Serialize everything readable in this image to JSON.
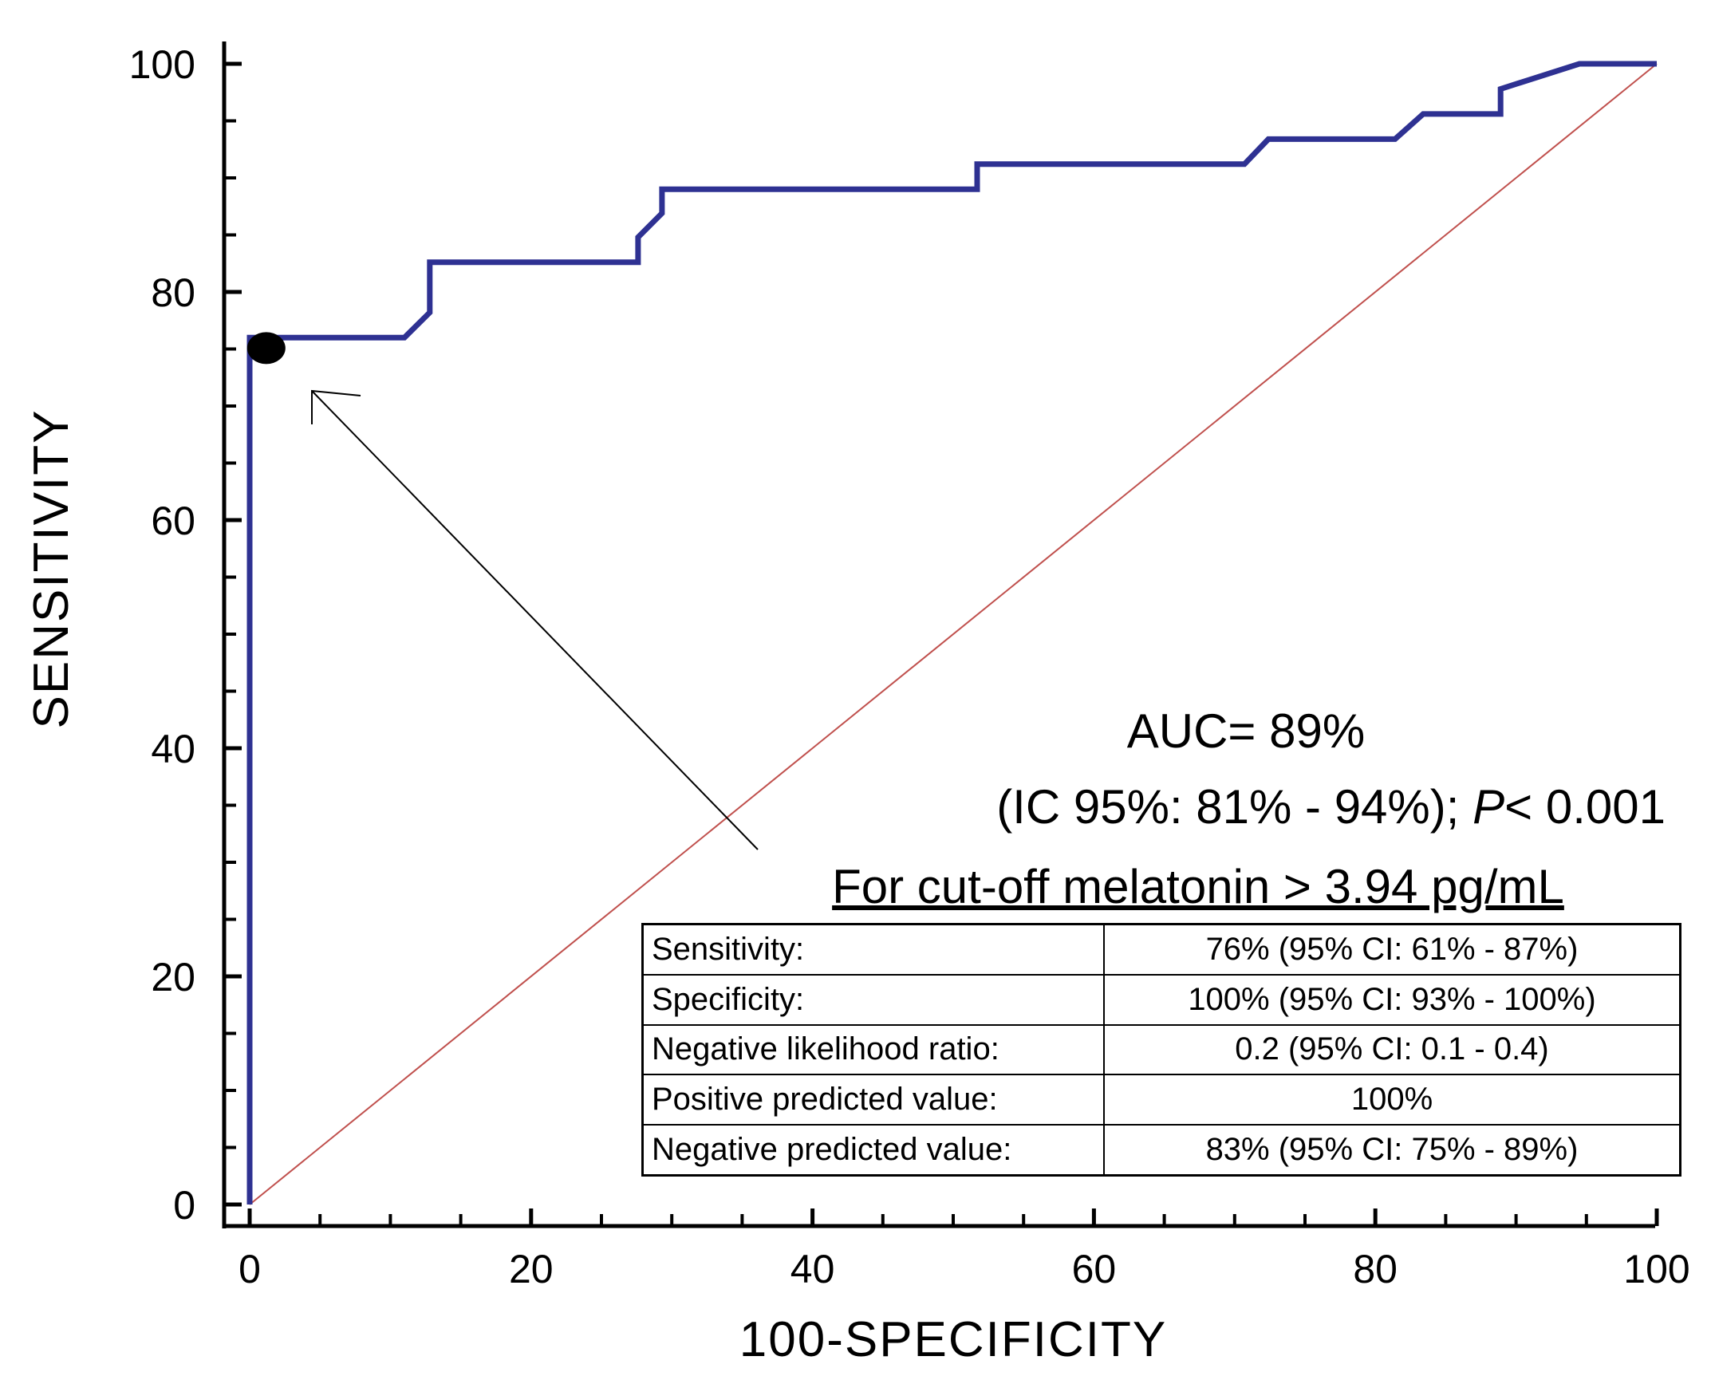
{
  "chart_data": {
    "type": "line",
    "title": "",
    "xlabel": "100-SPECIFICITY",
    "ylabel": "SENSITIVITY",
    "xlim": [
      0,
      100
    ],
    "ylim": [
      0,
      100
    ],
    "x_ticks": [
      "0",
      "20",
      "40",
      "60",
      "80",
      "100"
    ],
    "y_ticks": [
      "0",
      "20",
      "40",
      "60",
      "80",
      "100"
    ],
    "series": [
      {
        "name": "ROC curve",
        "color": "#2e3192",
        "x": [
          0,
          0,
          11,
          12.8,
          12.8,
          27.6,
          27.6,
          29.3,
          29.3,
          51.7,
          51.7,
          70.7,
          72.4,
          81.4,
          83.4,
          88.9,
          88.9,
          94.5,
          100
        ],
        "y": [
          0,
          76,
          76,
          78.2,
          82.6,
          82.6,
          84.8,
          86.9,
          89,
          89,
          91.2,
          91.2,
          93.4,
          93.4,
          95.6,
          95.6,
          97.8,
          100,
          100
        ]
      },
      {
        "name": "Reference line",
        "color": "#c0504d",
        "x": [
          0,
          100
        ],
        "y": [
          0,
          100
        ]
      }
    ],
    "cutoff_point": {
      "x": 0.5,
      "y": 75.5
    },
    "annotations": {
      "auc": "AUC= 89%",
      "ci_prefix": "(IC 95%: 81% - 94%); ",
      "p_symbol": "P",
      "p_value": "< 0.001",
      "cutoff": "For cut-off melatonin > 3.94 pg/mL"
    },
    "table": {
      "rows": [
        {
          "label": "Sensitivity:",
          "value": "76% (95% CI: 61% - 87%)"
        },
        {
          "label": "Specificity:",
          "value": "100% (95% CI: 93% - 100%)"
        },
        {
          "label": "Negative likelihood ratio:",
          "value": "0.2 (95% CI: 0.1 - 0.4)"
        },
        {
          "label": "Positive predicted value:",
          "value": "100%"
        },
        {
          "label": "Negative predicted value:",
          "value": "83% (95% CI: 75% - 89%)"
        }
      ]
    }
  }
}
